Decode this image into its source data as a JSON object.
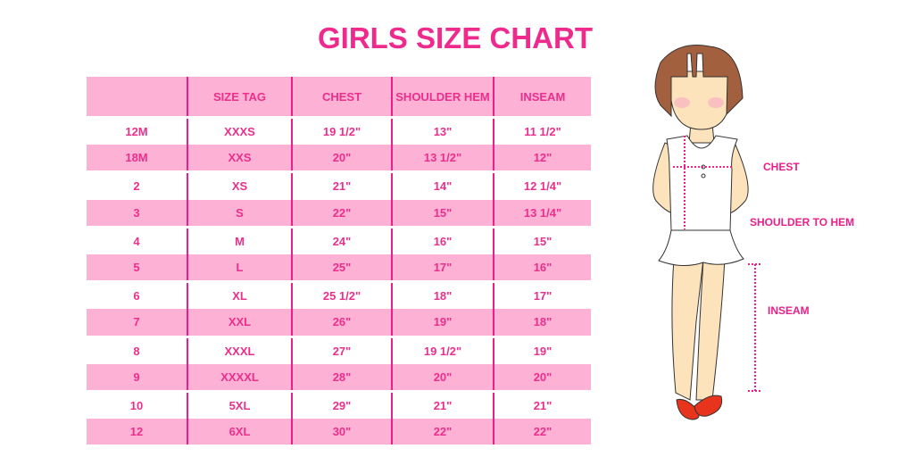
{
  "title": "GIRLS SIZE CHART",
  "colors": {
    "accent": "#ee2a8c",
    "row_pink": "#fcb1d5"
  },
  "table": {
    "headers": [
      "",
      "SIZE TAG",
      "CHEST",
      "SHOULDER HEM",
      "INSEAM"
    ],
    "rows": [
      [
        "12M",
        "XXXS",
        "19 1/2\"",
        "13\"",
        "11 1/2\""
      ],
      [
        "18M",
        "XXS",
        "20\"",
        "13 1/2\"",
        "12\""
      ],
      [
        "2",
        "XS",
        "21\"",
        "14\"",
        "12 1/4\""
      ],
      [
        "3",
        "S",
        "22\"",
        "15\"",
        "13 1/4\""
      ],
      [
        "4",
        "M",
        "24\"",
        "16\"",
        "15\""
      ],
      [
        "5",
        "L",
        "25\"",
        "17\"",
        "16\""
      ],
      [
        "6",
        "XL",
        "25 1/2\"",
        "18\"",
        "17\""
      ],
      [
        "7",
        "XXL",
        "26\"",
        "19\"",
        "18\""
      ],
      [
        "8",
        "XXXL",
        "27\"",
        "19 1/2\"",
        "19\""
      ],
      [
        "9",
        "XXXXL",
        "28\"",
        "20\"",
        "20\""
      ],
      [
        "10",
        "5XL",
        "29\"",
        "21\"",
        "21\""
      ],
      [
        "12",
        "6XL",
        "30\"",
        "22\"",
        "22\""
      ]
    ]
  },
  "figure": {
    "labels": {
      "chest": "CHEST",
      "shoulder_to_hem": "SHOULDER TO HEM",
      "inseam": "INSEAM"
    }
  }
}
